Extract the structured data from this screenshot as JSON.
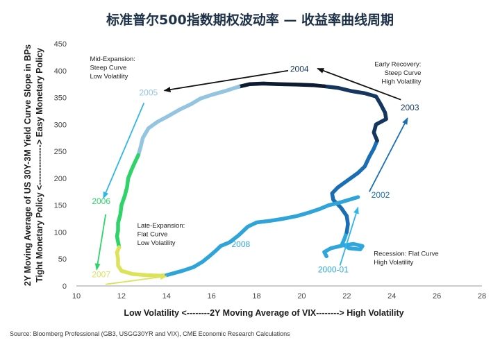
{
  "chart_data": {
    "type": "scatter",
    "title": "标准普尔500指数期权波动率 — 收益率曲线周期",
    "xlabel": "Low Volatility <--------2Y Moving Average of VIX--------> High Volatility",
    "ylabel_line1": "2Y Moving Average of US 30Y-3M Yield Curve Slope in BPs",
    "ylabel_line2": "Tight Monetary Policy <--------------> Easy Monetary Policy",
    "xlim": [
      10,
      28
    ],
    "ylim": [
      0,
      450
    ],
    "x_ticks": [
      "10",
      "12",
      "14",
      "16",
      "18",
      "20",
      "22",
      "24",
      "26",
      "28"
    ],
    "y_ticks": [
      "0",
      "50",
      "100",
      "150",
      "200",
      "250",
      "300",
      "350",
      "400",
      "450"
    ],
    "grid": false,
    "segments": [
      {
        "name": "2000-01",
        "color": "#2fa7dc",
        "points": [
          [
            21.1,
            55
          ],
          [
            21.0,
            63
          ],
          [
            21.3,
            70
          ],
          [
            21.8,
            75
          ],
          [
            22.3,
            78
          ],
          [
            22.7,
            74
          ],
          [
            22.6,
            68
          ],
          [
            22.1,
            70
          ],
          [
            21.8,
            78
          ],
          [
            21.9,
            88
          ],
          [
            22.0,
            100
          ]
        ]
      },
      {
        "name": "2002",
        "color": "#1a6fb4",
        "points": [
          [
            22.0,
            100
          ],
          [
            22.05,
            115
          ],
          [
            22.0,
            130
          ],
          [
            21.75,
            145
          ],
          [
            21.4,
            160
          ],
          [
            21.35,
            172
          ],
          [
            21.6,
            183
          ],
          [
            22.0,
            195
          ],
          [
            22.5,
            210
          ],
          [
            22.8,
            222
          ],
          [
            23.0,
            240
          ],
          [
            23.2,
            255
          ],
          [
            23.35,
            270
          ]
        ]
      },
      {
        "name": "2003",
        "color": "#15365e",
        "points": [
          [
            23.35,
            270
          ],
          [
            23.2,
            285
          ],
          [
            23.3,
            300
          ],
          [
            23.75,
            310
          ],
          [
            23.7,
            322
          ],
          [
            23.5,
            338
          ],
          [
            23.3,
            352
          ],
          [
            22.8,
            358
          ],
          [
            22.2,
            362
          ],
          [
            21.6,
            368
          ],
          [
            21.0,
            371
          ]
        ]
      },
      {
        "name": "2004",
        "color": "#0d1b33",
        "points": [
          [
            21.0,
            371
          ],
          [
            20.5,
            373
          ],
          [
            19.8,
            374
          ],
          [
            19.0,
            375
          ],
          [
            18.3,
            376
          ],
          [
            17.7,
            375
          ],
          [
            17.2,
            370
          ]
        ]
      },
      {
        "name": "2005",
        "color": "#93c4e0",
        "points": [
          [
            17.2,
            370
          ],
          [
            16.6,
            362
          ],
          [
            16.0,
            355
          ],
          [
            15.5,
            348
          ],
          [
            15.1,
            338
          ],
          [
            14.6,
            328
          ],
          [
            14.1,
            316
          ],
          [
            13.6,
            305
          ],
          [
            13.2,
            293
          ],
          [
            12.95,
            275
          ],
          [
            12.85,
            258
          ],
          [
            12.75,
            243
          ]
        ]
      },
      {
        "name": "2006",
        "color": "#2fd36a",
        "points": [
          [
            12.75,
            243
          ],
          [
            12.6,
            230
          ],
          [
            12.45,
            216
          ],
          [
            12.3,
            200
          ],
          [
            12.25,
            184
          ],
          [
            12.15,
            168
          ],
          [
            12.0,
            150
          ],
          [
            11.95,
            133
          ],
          [
            11.85,
            117
          ],
          [
            11.85,
            103
          ],
          [
            11.8,
            92
          ],
          [
            11.85,
            82
          ],
          [
            11.9,
            72
          ]
        ]
      },
      {
        "name": "2007",
        "color": "#dbe35a",
        "points": [
          [
            11.9,
            72
          ],
          [
            11.8,
            62
          ],
          [
            11.85,
            50
          ],
          [
            11.85,
            38
          ],
          [
            12.0,
            28
          ],
          [
            12.5,
            22
          ],
          [
            13.1,
            20
          ],
          [
            13.7,
            19
          ],
          [
            14.0,
            20
          ]
        ]
      },
      {
        "name": "2008",
        "color": "#2fa4d9",
        "points": [
          [
            14.0,
            20
          ],
          [
            14.7,
            28
          ],
          [
            15.2,
            35
          ],
          [
            15.6,
            45
          ],
          [
            15.9,
            55
          ],
          [
            16.2,
            66
          ],
          [
            16.4,
            74
          ],
          [
            16.8,
            81
          ],
          [
            17.2,
            94
          ],
          [
            17.6,
            110
          ],
          [
            18.0,
            118
          ],
          [
            18.6,
            121
          ],
          [
            19.2,
            125
          ],
          [
            19.8,
            130
          ],
          [
            20.3,
            136
          ],
          [
            20.8,
            143
          ],
          [
            21.2,
            150
          ],
          [
            21.7,
            155
          ],
          [
            22.1,
            160
          ],
          [
            22.5,
            165
          ]
        ]
      }
    ],
    "year_labels": [
      {
        "text": "2004",
        "color": "#15365e",
        "x": 19.9,
        "y": 398
      },
      {
        "text": "2003",
        "color": "#15365e",
        "x": 24.8,
        "y": 326
      },
      {
        "text": "2005",
        "color": "#93c4e0",
        "x": 13.2,
        "y": 354
      },
      {
        "text": "2006",
        "color": "#2fd36a",
        "x": 11.1,
        "y": 152
      },
      {
        "text": "2002",
        "color": "#1a6fb4",
        "x": 23.5,
        "y": 164
      },
      {
        "text": "2008",
        "color": "#2fa4d9",
        "x": 17.3,
        "y": 72
      },
      {
        "text": "2007",
        "color": "#dbe35a",
        "x": 11.1,
        "y": 16
      },
      {
        "text": "2000-01",
        "color": "#2fa7dc",
        "x": 21.4,
        "y": 25
      }
    ],
    "arrows": [
      {
        "color": "#111111",
        "from": [
          19.4,
          400
        ],
        "to": [
          13.9,
          363
        ]
      },
      {
        "color": "#111111",
        "from": [
          24.4,
          346
        ],
        "to": [
          20.7,
          404
        ]
      },
      {
        "color": "#2fb5ea",
        "from": [
          13.0,
          340
        ],
        "to": [
          11.2,
          163
        ]
      },
      {
        "color": "#1a6fb4",
        "from": [
          23.0,
          175
        ],
        "to": [
          24.7,
          312
        ]
      },
      {
        "color": "#2fd36a",
        "from": [
          11.3,
          133
        ],
        "to": [
          10.9,
          30
        ]
      },
      {
        "color": "#dbe35a",
        "from": [
          11.3,
          3
        ],
        "to": [
          14.0,
          18
        ]
      },
      {
        "color": "#2fb5ea",
        "from": [
          21.7,
          38
        ],
        "to": [
          22.5,
          146
        ]
      }
    ],
    "annotations": [
      {
        "lines": [
          "Mid-Expansion:",
          "Steep Curve",
          "Low Volatility"
        ],
        "x": 10.6,
        "y": 418,
        "anchor": "start"
      },
      {
        "lines": [
          "Early Recovery:",
          "Steep Curve",
          "High Volatility"
        ],
        "x": 25.3,
        "y": 408,
        "anchor": "end"
      },
      {
        "lines": [
          "Late-Expansion:",
          "Flat Curve",
          "Low Volatility"
        ],
        "x": 12.7,
        "y": 108,
        "anchor": "start"
      },
      {
        "lines": [
          "Recession:  Flat Curve",
          "High Volatility"
        ],
        "x": 23.2,
        "y": 56,
        "anchor": "start"
      }
    ]
  },
  "footer": {
    "source": "Source: Bloomberg Professional (GB3, USGG30YR and VIX), CME Economic Research Calculations"
  }
}
